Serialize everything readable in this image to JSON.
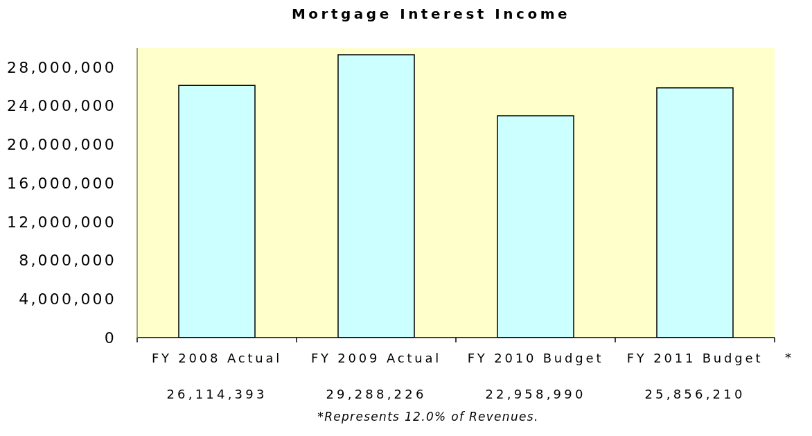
{
  "chart_data": {
    "type": "bar",
    "title": "Mortgage Interest Income",
    "categories": [
      "FY 2008 Actual",
      "FY 2009 Actual",
      "FY 2010 Budget",
      "FY 2011 Budget"
    ],
    "values": [
      26114393,
      29288226,
      22958990,
      25856210
    ],
    "color": "#ccffff",
    "value_labels": [
      "26,114,393",
      "29,288,226",
      "22,958,990",
      "25,856,210"
    ],
    "ylim": [
      0,
      30000000
    ],
    "yticks": [
      0,
      {
        "value": 4000000,
        "label": "4,000,000"
      },
      {
        "value": 8000000,
        "label": "8,000,000"
      },
      {
        "value": 12000000,
        "label": "12,000,000"
      },
      {
        "value": 16000000,
        "label": "16,000,000"
      },
      {
        "value": 20000000,
        "label": "20,000,000"
      },
      {
        "value": 24000000,
        "label": "24,000,000"
      },
      {
        "value": 28000000,
        "label": "28,000,000"
      }
    ],
    "annotations": [
      "*",
      "*Represents 12.0% of Revenues."
    ]
  }
}
